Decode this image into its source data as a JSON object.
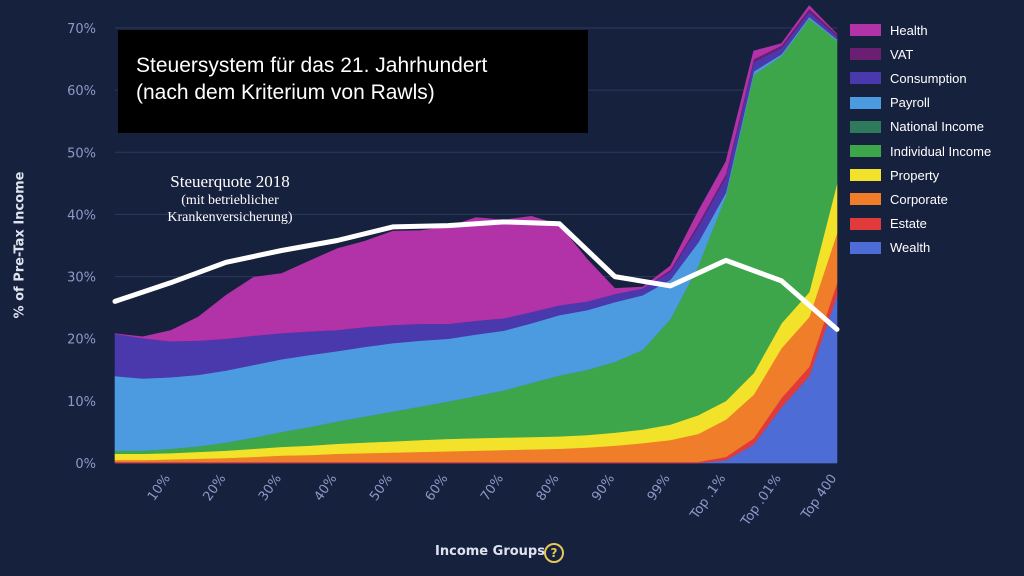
{
  "chart_data": {
    "type": "area",
    "stacked": true,
    "title": "Steuersystem für das 21. Jahrhundert",
    "subtitle": "(nach dem Kriterium von Rawls)",
    "xlabel": "Income Groups",
    "ylabel": "% of Pre-Tax Income",
    "ylim": [
      0,
      70
    ],
    "yticks": [
      0,
      10,
      20,
      30,
      40,
      50,
      60,
      70
    ],
    "ytick_labels": [
      "0%",
      "10%",
      "20%",
      "30%",
      "40%",
      "50%",
      "60%",
      "70%"
    ],
    "x_tick_labels": [
      "10%",
      "20%",
      "30%",
      "40%",
      "50%",
      "60%",
      "70%",
      "80%",
      "90%",
      "99%",
      "Top .1%",
      "Top .01%",
      "Top 400"
    ],
    "x_tick_positions": [
      1,
      2,
      3,
      4,
      5,
      6,
      7,
      8,
      9,
      10,
      11,
      12,
      13
    ],
    "xlim": [
      0,
      13
    ],
    "grid": true,
    "legend_position": "right",
    "x": [
      0,
      0.5,
      1,
      1.5,
      2,
      2.5,
      3,
      3.5,
      4,
      4.5,
      5,
      5.5,
      6,
      6.5,
      7,
      7.5,
      8,
      8.5,
      9,
      9.5,
      10,
      10.5,
      11,
      11.5,
      12,
      12.5,
      13
    ],
    "series": [
      {
        "name": "Wealth",
        "color": "#4d6cd6",
        "values": [
          0,
          0,
          0,
          0,
          0,
          0,
          0,
          0,
          0,
          0,
          0,
          0,
          0,
          0,
          0,
          0,
          0,
          0,
          0,
          0,
          0,
          0,
          0.5,
          3,
          9,
          14,
          27
        ]
      },
      {
        "name": "Estate",
        "color": "#e03a3a",
        "values": [
          0.2,
          0.2,
          0.2,
          0.2,
          0.2,
          0.2,
          0.2,
          0.2,
          0.2,
          0.2,
          0.2,
          0.2,
          0.2,
          0.2,
          0.2,
          0.2,
          0.2,
          0.2,
          0.2,
          0.2,
          0.2,
          0.2,
          0.5,
          1,
          1.5,
          1.5,
          2
        ]
      },
      {
        "name": "Corporate",
        "color": "#ef7d2a",
        "values": [
          0.3,
          0.3,
          0.4,
          0.5,
          0.6,
          0.8,
          1,
          1.1,
          1.3,
          1.4,
          1.5,
          1.6,
          1.7,
          1.8,
          1.9,
          2,
          2.1,
          2.3,
          2.6,
          3,
          3.5,
          4.5,
          6,
          7,
          8,
          8,
          8
        ]
      },
      {
        "name": "Property",
        "color": "#f2e229",
        "values": [
          1,
          1,
          1,
          1.1,
          1.2,
          1.3,
          1.4,
          1.5,
          1.6,
          1.7,
          1.8,
          1.9,
          2,
          2,
          2,
          2,
          2,
          2,
          2.1,
          2.2,
          2.5,
          3,
          3,
          3.5,
          4,
          4,
          8
        ]
      },
      {
        "name": "Individual Income",
        "color": "#3ea64a",
        "values": [
          0.5,
          0.5,
          0.7,
          0.9,
          1.3,
          1.8,
          2.4,
          3,
          3.6,
          4.2,
          4.8,
          5.4,
          6,
          6.8,
          7.6,
          8.7,
          9.8,
          10.5,
          11.4,
          12.8,
          17,
          24,
          33,
          48,
          43,
          44,
          23
        ]
      },
      {
        "name": "National Income",
        "color": "#2f7a5c",
        "values": [
          0,
          0,
          0,
          0,
          0,
          0,
          0,
          0,
          0,
          0,
          0,
          0,
          0,
          0,
          0,
          0,
          0,
          0,
          0,
          0,
          0,
          0,
          0,
          0,
          0,
          0,
          0
        ]
      },
      {
        "name": "Payroll",
        "color": "#4c9be0",
        "values": [
          12,
          11.6,
          11.5,
          11.5,
          11.6,
          11.7,
          11.7,
          11.6,
          11.3,
          11.2,
          11,
          10.6,
          10.1,
          9.9,
          9.6,
          9.6,
          9.7,
          9.6,
          9.6,
          8.8,
          6.3,
          3.8,
          0.5,
          0.5,
          0.3,
          0.3,
          0.2
        ]
      },
      {
        "name": "Consumption",
        "color": "#4a39ad",
        "values": [
          6.8,
          6.5,
          5.8,
          5.5,
          5.1,
          4.7,
          4.2,
          3.8,
          3.4,
          3.2,
          2.9,
          2.7,
          2.4,
          2.2,
          2,
          1.8,
          1.6,
          1.4,
          1.3,
          1.1,
          1.3,
          2.5,
          2.5,
          1.5,
          1,
          0.8,
          0.5
        ]
      },
      {
        "name": "VAT",
        "color": "#6b1f73",
        "values": [
          0,
          0,
          0,
          0,
          0,
          0,
          0,
          0,
          0,
          0,
          0,
          0,
          0,
          0,
          0,
          0,
          0,
          0,
          0,
          0,
          0.3,
          0.5,
          0.5,
          0.5,
          0.4,
          0.5,
          0.3
        ]
      },
      {
        "name": "Health",
        "color": "#b232a8",
        "values": [
          0,
          0.2,
          1.7,
          3.8,
          7,
          9.4,
          9.6,
          11.3,
          13.1,
          13.8,
          15.1,
          15,
          15.6,
          16.6,
          15.8,
          15.4,
          12.9,
          6.8,
          0.9,
          0.2,
          0.6,
          2,
          2,
          1.3,
          0.3,
          0.5,
          0
        ]
      }
    ],
    "overlay_line": {
      "label": "Steuerquote 2018",
      "label_lines": [
        "Steuerquote 2018",
        "(mit betrieblicher",
        "Krankenversicherung)"
      ],
      "color": "#ffffff",
      "x": [
        0,
        1,
        2,
        3,
        4,
        5,
        6,
        7,
        8,
        9,
        10,
        11,
        12,
        13
      ],
      "y": [
        26,
        29,
        32.3,
        34.2,
        35.8,
        38,
        38.2,
        38.8,
        38.5,
        30,
        28.5,
        32.6,
        29.3,
        21.5
      ]
    }
  }
}
